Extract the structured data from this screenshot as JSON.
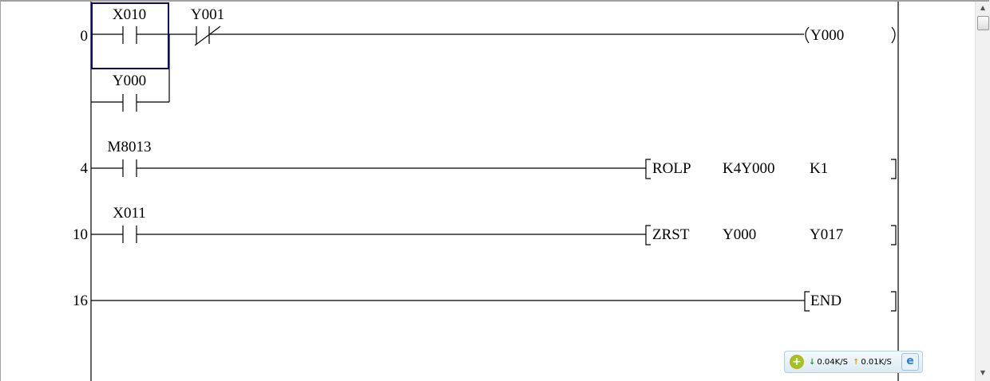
{
  "ladder": {
    "rungs": [
      {
        "step": "0",
        "contacts": [
          "X010",
          "Y001"
        ],
        "branch_contact": "Y000",
        "coil": "Y000"
      },
      {
        "step": "4",
        "contact": "M8013",
        "instruction": "ROLP",
        "operand1": "K4Y000",
        "operand2": "K1"
      },
      {
        "step": "10",
        "contact": "X011",
        "instruction": "ZRST",
        "operand1": "Y000",
        "operand2": "Y017"
      },
      {
        "step": "16",
        "instruction": "END"
      }
    ],
    "selection_color": "#0a0a6e"
  },
  "netmonitor": {
    "download": "0.04K/S",
    "upload": "0.01K/S",
    "download_color": "#2a9a2a",
    "upload_color": "#e0a020"
  }
}
